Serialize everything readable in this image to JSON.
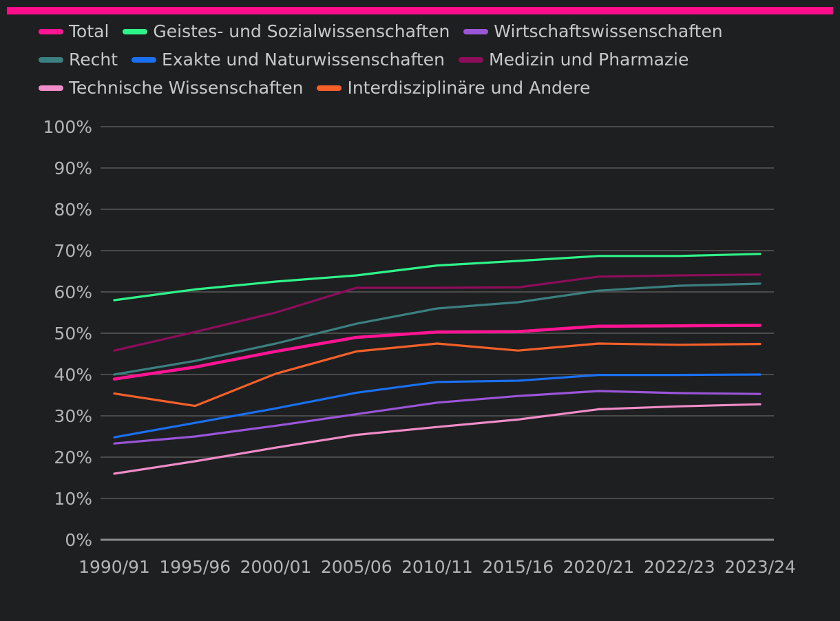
{
  "chart_data": {
    "type": "line",
    "title": "",
    "xlabel": "",
    "ylabel": "",
    "categories": [
      "1990/91",
      "1995/96",
      "2000/01",
      "2005/06",
      "2010/11",
      "2015/16",
      "2020/21",
      "2022/23",
      "2023/24"
    ],
    "ylim": [
      0,
      100
    ],
    "yticks": [
      0,
      10,
      20,
      30,
      40,
      50,
      60,
      70,
      80,
      90,
      100
    ],
    "ytick_labels": [
      "0%",
      "10%",
      "20%",
      "30%",
      "40%",
      "50%",
      "60%",
      "70%",
      "80%",
      "90%",
      "100%"
    ],
    "grid": true,
    "legend_position": "top",
    "series": [
      {
        "name": "Total",
        "color": "#ff1493",
        "values": [
          38.9,
          41.8,
          45.6,
          49.0,
          50.3,
          50.4,
          51.7,
          51.8,
          51.9
        ]
      },
      {
        "name": "Geistes- und Sozialwissenschaften",
        "color": "#2ef58a",
        "values": [
          58.0,
          60.6,
          62.5,
          64.0,
          66.4,
          67.5,
          68.7,
          68.7,
          69.2
        ]
      },
      {
        "name": "Wirtschaftswissenschaften",
        "color": "#9a55d8",
        "values": [
          23.3,
          25.0,
          27.6,
          30.4,
          33.2,
          34.8,
          36.0,
          35.5,
          35.3
        ]
      },
      {
        "name": "Recht",
        "color": "#3b7f80",
        "values": [
          40.0,
          43.3,
          47.5,
          52.3,
          56.0,
          57.5,
          60.3,
          61.5,
          62.0
        ]
      },
      {
        "name": "Exakte und Naturwissenschaften",
        "color": "#1a70f0",
        "values": [
          24.8,
          28.3,
          31.8,
          35.6,
          38.2,
          38.5,
          39.9,
          39.9,
          40.0
        ]
      },
      {
        "name": "Medizin und Pharmazie",
        "color": "#8c0d5a",
        "values": [
          45.8,
          50.3,
          55.0,
          61.0,
          61.0,
          61.1,
          63.7,
          64.0,
          64.2
        ]
      },
      {
        "name": "Technische Wissenschaften",
        "color": "#f08cc8",
        "values": [
          16.0,
          19.0,
          22.3,
          25.4,
          27.3,
          29.1,
          31.6,
          32.3,
          32.8
        ]
      },
      {
        "name": "Interdisziplinäre und Andere",
        "color": "#f5602a",
        "values": [
          35.4,
          32.4,
          40.2,
          45.6,
          47.5,
          45.8,
          47.5,
          47.2,
          47.4
        ]
      }
    ]
  }
}
